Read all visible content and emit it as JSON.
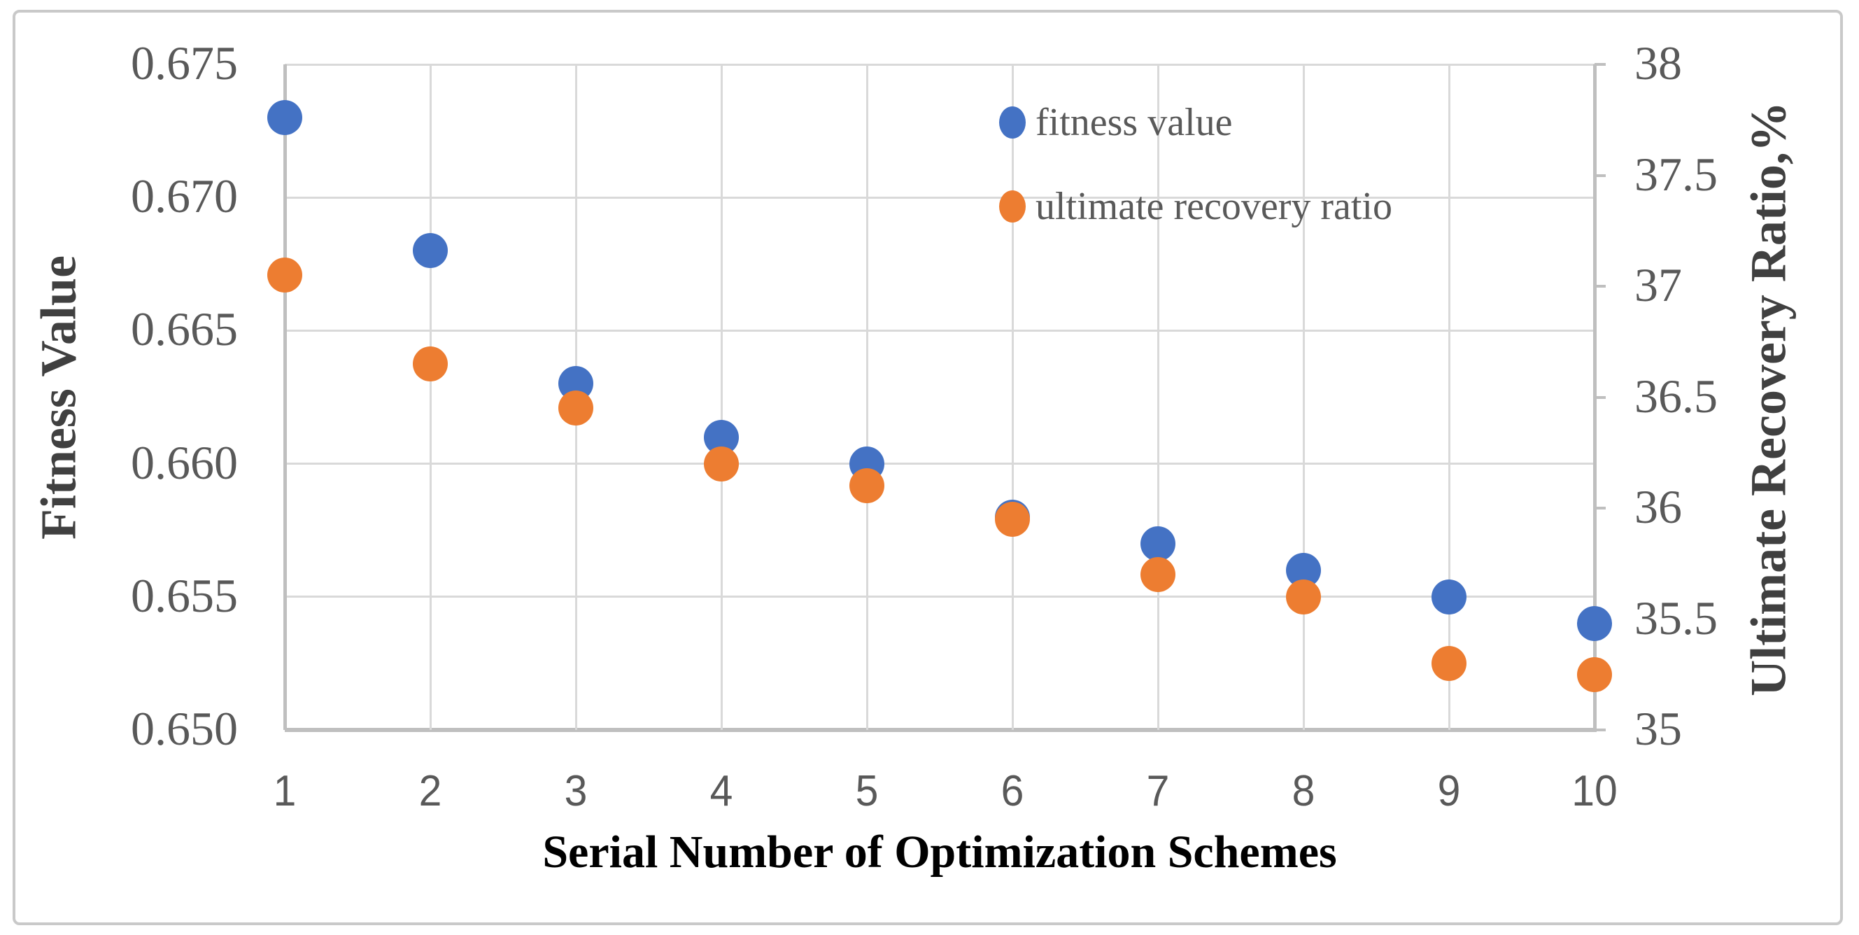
{
  "chart_data": {
    "type": "scatter",
    "x_axis": {
      "title": "Serial Number of Optimization Schemes",
      "tick_labels": [
        "1",
        "2",
        "3",
        "4",
        "5",
        "6",
        "7",
        "8",
        "9",
        "10"
      ],
      "range": [
        1,
        10
      ]
    },
    "y_axis_left": {
      "title": "Fitness Value",
      "tick_labels": [
        "0.675",
        "0.670",
        "0.665",
        "0.660",
        "0.655",
        "0.650"
      ],
      "range": [
        0.65,
        0.675
      ]
    },
    "y_axis_right": {
      "title": "Ultimate Recovery Ratio,%",
      "tick_labels": [
        "38",
        "37.5",
        "37",
        "36.5",
        "36",
        "35.5",
        "35"
      ],
      "range": [
        35,
        38
      ]
    },
    "categories": [
      1,
      2,
      3,
      4,
      5,
      6,
      7,
      8,
      9,
      10
    ],
    "series": [
      {
        "name": "fitness value",
        "axis": "left",
        "color": "#4472C4",
        "values": [
          0.673,
          0.668,
          0.663,
          0.661,
          0.66,
          0.658,
          0.657,
          0.656,
          0.655,
          0.654
        ]
      },
      {
        "name": "ultimate recovery ratio",
        "axis": "right",
        "color": "#ED7D31",
        "values": [
          37.05,
          36.65,
          36.45,
          36.2,
          36.1,
          35.95,
          35.7,
          35.6,
          35.3,
          35.25
        ]
      }
    ],
    "legend_position": "inside-top-right",
    "grid": true,
    "colors": {
      "gridline": "#D9D9D9",
      "axis_line": "#BFBFBF",
      "tick_text": "#595959",
      "axis_title_text": "#404040",
      "x_title_text": "#000000",
      "figure_border": "#C9C9C9"
    }
  }
}
